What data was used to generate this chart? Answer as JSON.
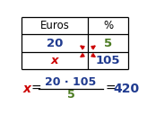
{
  "table_headers": [
    "Euros",
    "%"
  ],
  "row1": [
    "20",
    "5"
  ],
  "row2": [
    "x",
    "105"
  ],
  "formula_num": "20 · 105",
  "formula_den": "5",
  "formula_result": "420",
  "color_blue": "#1f3a8f",
  "color_red": "#cc0000",
  "color_green": "#4a7a20",
  "color_black": "#000000",
  "bg_color": "#ffffff"
}
